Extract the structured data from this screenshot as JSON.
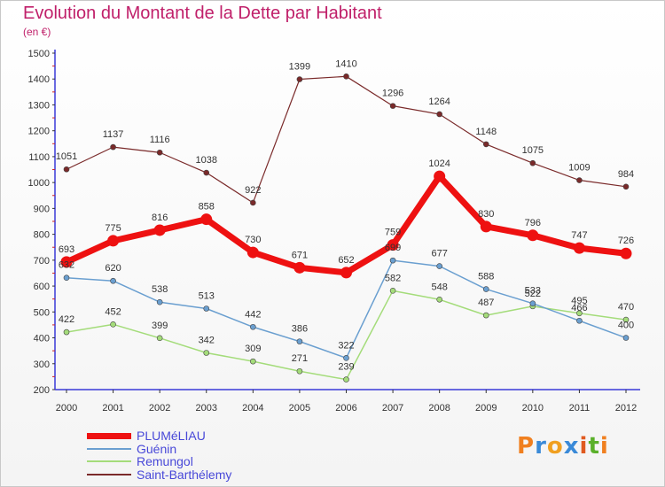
{
  "chart_data": {
    "type": "line",
    "title": "Evolution du Montant de la Dette par Habitant",
    "unit_label": "(en €)",
    "x": [
      "2000",
      "2001",
      "2002",
      "2003",
      "2004",
      "2005",
      "2006",
      "2007",
      "2008",
      "2009",
      "2010",
      "2011",
      "2012"
    ],
    "ylim": [
      200,
      1500
    ],
    "yticks": [
      200,
      300,
      400,
      500,
      600,
      700,
      800,
      900,
      1000,
      1100,
      1200,
      1300,
      1400,
      1500
    ],
    "grid": false,
    "legend_position": "bottom-left",
    "series": [
      {
        "name": "PLUMéLIAU",
        "color": "#ee1111",
        "width": 7,
        "values": [
          693,
          775,
          816,
          858,
          730,
          671,
          652,
          759,
          1024,
          830,
          796,
          747,
          726
        ]
      },
      {
        "name": "Guénin",
        "color": "#6a9fd0",
        "width": 1.5,
        "values": [
          632,
          620,
          538,
          513,
          442,
          386,
          322,
          699,
          677,
          588,
          533,
          466,
          400
        ]
      },
      {
        "name": "Remungol",
        "color": "#a4dc7a",
        "width": 1.5,
        "values": [
          422,
          452,
          399,
          342,
          309,
          271,
          239,
          582,
          548,
          487,
          522,
          495,
          470
        ]
      },
      {
        "name": "Saint-Barthélemy",
        "color": "#7a2a2a",
        "width": 1.2,
        "values": [
          1051,
          1137,
          1116,
          1038,
          922,
          1399,
          1410,
          1296,
          1264,
          1148,
          1075,
          1009,
          984
        ]
      }
    ]
  },
  "logo": {
    "text": "Proxiti",
    "colors": [
      "#f08020",
      "#3a8ad8",
      "#f0a020",
      "#3a8ad8",
      "#e05a20",
      "#5ab02a",
      "#f08020"
    ]
  }
}
